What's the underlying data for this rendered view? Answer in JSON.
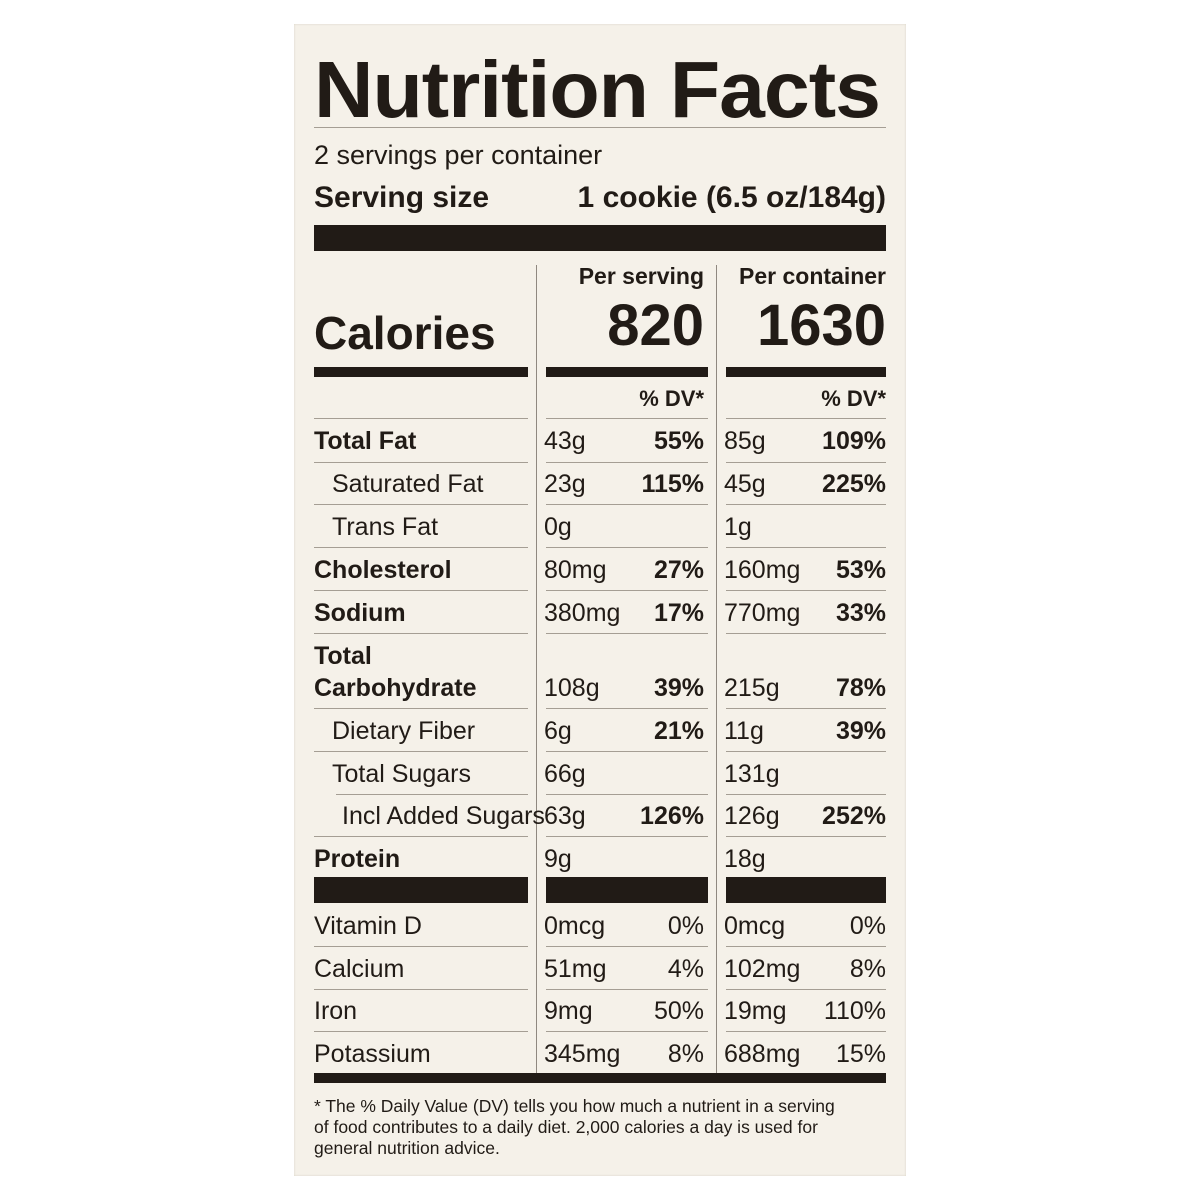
{
  "title": "Nutrition Facts",
  "servings_per_container": "2 servings per container",
  "serving_size_label": "Serving size",
  "serving_size_value": "1 cookie (6.5 oz/184g)",
  "calories_label": "Calories",
  "per_serving_label": "Per serving",
  "per_container_label": "Per container",
  "calories_per_serving": "820",
  "calories_per_container": "1630",
  "dv_header": "% DV*",
  "rows": [
    {
      "label": "Total Fat",
      "s_amt": "43g",
      "s_dv": "55%",
      "c_amt": "85g",
      "c_dv": "109%"
    },
    {
      "label": "Saturated Fat",
      "s_amt": "23g",
      "s_dv": "115%",
      "c_amt": "45g",
      "c_dv": "225%"
    },
    {
      "label": "Trans Fat",
      "s_amt": "0g",
      "s_dv": "",
      "c_amt": "1g",
      "c_dv": ""
    },
    {
      "label": "Cholesterol",
      "s_amt": "80mg",
      "s_dv": "27%",
      "c_amt": "160mg",
      "c_dv": "53%"
    },
    {
      "label": "Sodium",
      "s_amt": "380mg",
      "s_dv": "17%",
      "c_amt": "770mg",
      "c_dv": "33%"
    },
    {
      "label_line1": "Total",
      "label_line2": "Carbohydrate",
      "s_amt": "108g",
      "s_dv": "39%",
      "c_amt": "215g",
      "c_dv": "78%"
    },
    {
      "label": "Dietary Fiber",
      "s_amt": "6g",
      "s_dv": "21%",
      "c_amt": "11g",
      "c_dv": "39%"
    },
    {
      "label": "Total Sugars",
      "s_amt": "66g",
      "s_dv": "",
      "c_amt": "131g",
      "c_dv": ""
    },
    {
      "label": "Incl Added Sugars",
      "s_amt": "63g",
      "s_dv": "126%",
      "c_amt": "126g",
      "c_dv": "252%"
    },
    {
      "label": "Protein",
      "s_amt": "9g",
      "s_dv": "",
      "c_amt": "18g",
      "c_dv": ""
    }
  ],
  "vitamins": [
    {
      "label": "Vitamin D",
      "s_amt": "0mcg",
      "s_dv": "0%",
      "c_amt": "0mcg",
      "c_dv": "0%"
    },
    {
      "label": "Calcium",
      "s_amt": "51mg",
      "s_dv": "4%",
      "c_amt": "102mg",
      "c_dv": "8%"
    },
    {
      "label": "Iron",
      "s_amt": "9mg",
      "s_dv": "50%",
      "c_amt": "19mg",
      "c_dv": "110%"
    },
    {
      "label": "Potassium",
      "s_amt": "345mg",
      "s_dv": "8%",
      "c_amt": "688mg",
      "c_dv": "15%"
    }
  ],
  "footnote_line1": "* The % Daily Value (DV) tells you how much a nutrient in a serving",
  "footnote_line2": "of food contributes to a daily diet. 2,000 calories a day is used for",
  "footnote_line3": "general nutrition advice."
}
